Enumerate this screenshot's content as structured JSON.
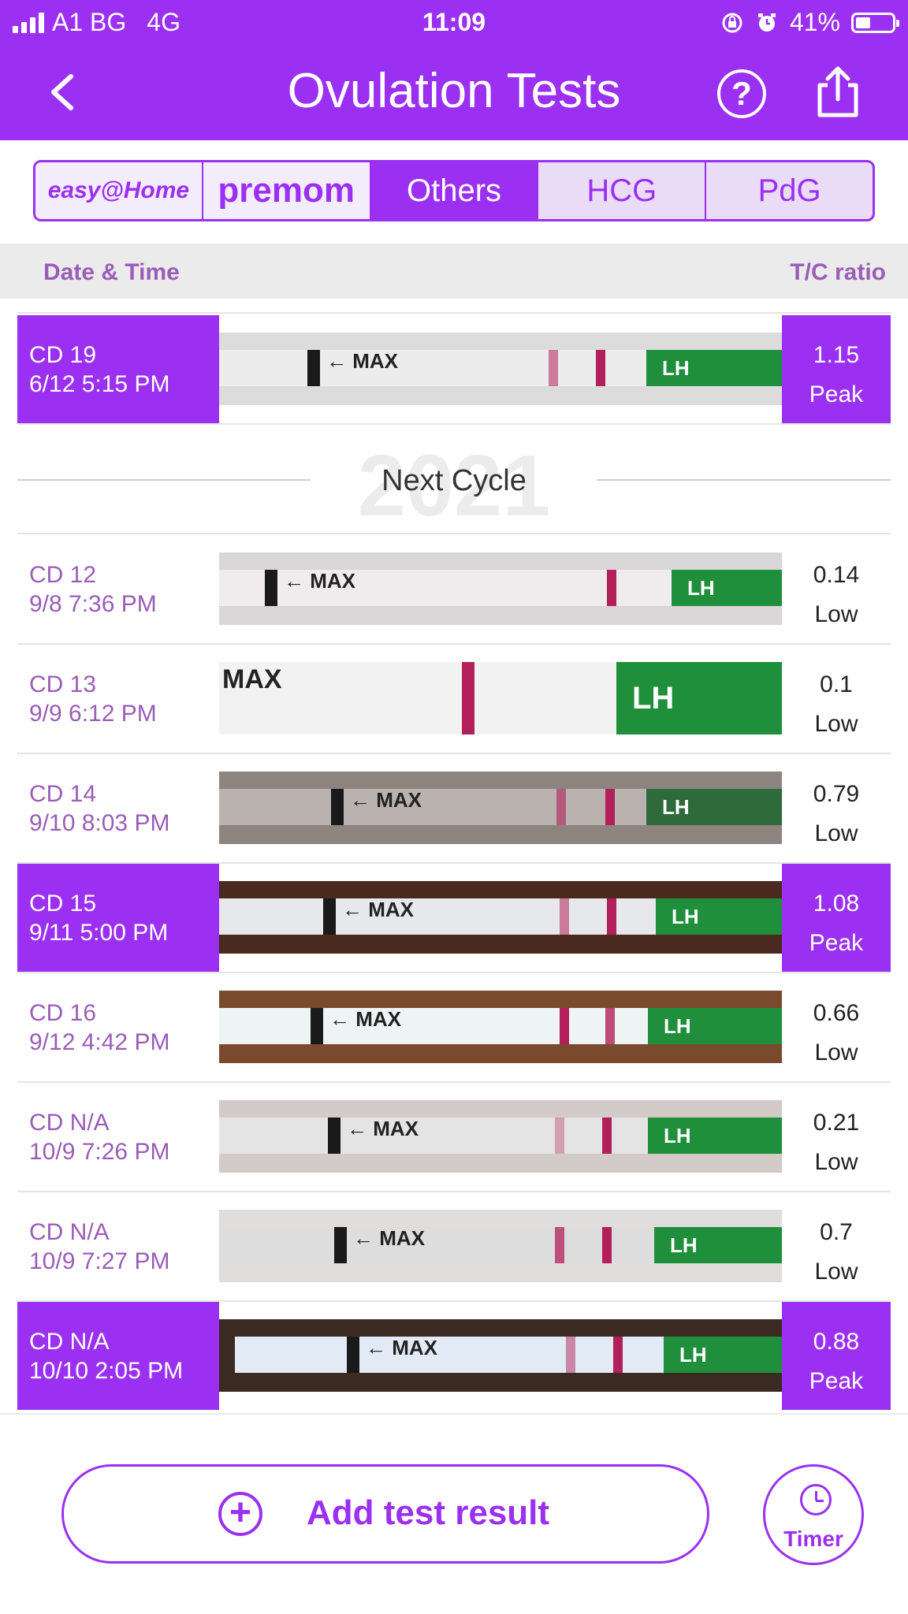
{
  "status_bar": {
    "carrier": "A1 BG",
    "network": "4G",
    "time": "11:09",
    "battery": "41%",
    "battery_level": 0.41
  },
  "header": {
    "title": "Ovulation Tests"
  },
  "tabs": {
    "easy_label": "easy@Home",
    "premom_label": "premom",
    "others": "Others",
    "hcg": "HCG",
    "pdg": "PdG",
    "active": "Others"
  },
  "columns": {
    "date_time": "Date & Time",
    "ratio": "T/C ratio"
  },
  "rows": [
    {
      "cd": "CD 19",
      "datetime": "6/12 5:15 PM",
      "ratio": "1.15",
      "level": "Peak",
      "peak": true
    },
    {
      "cd": "CD 12",
      "datetime": "9/8 7:36 PM",
      "ratio": "0.14",
      "level": "Low",
      "peak": false
    },
    {
      "cd": "CD 13",
      "datetime": "9/9 6:12 PM",
      "ratio": "0.1",
      "level": "Low",
      "peak": false
    },
    {
      "cd": "CD 14",
      "datetime": "9/10 8:03 PM",
      "ratio": "0.79",
      "level": "Low",
      "peak": false
    },
    {
      "cd": "CD 15",
      "datetime": "9/11 5:00 PM",
      "ratio": "1.08",
      "level": "Peak",
      "peak": true
    },
    {
      "cd": "CD 16",
      "datetime": "9/12 4:42 PM",
      "ratio": "0.66",
      "level": "Low",
      "peak": false
    },
    {
      "cd": "CD N/A",
      "datetime": "10/9 7:26 PM",
      "ratio": "0.21",
      "level": "Low",
      "peak": false
    },
    {
      "cd": "CD N/A",
      "datetime": "10/9 7:27 PM",
      "ratio": "0.7",
      "level": "Low",
      "peak": false
    },
    {
      "cd": "CD N/A",
      "datetime": "10/10 2:05 PM",
      "ratio": "0.88",
      "level": "Peak",
      "peak": true
    }
  ],
  "strip_text": {
    "max": "MAX",
    "lh": "LH"
  },
  "next_cycle": {
    "year": "2021",
    "label": "Next Cycle"
  },
  "actions": {
    "add": "Add test result",
    "timer": "Timer"
  },
  "colors": {
    "accent": "#9b30f2",
    "date_text": "#9a5db8",
    "test_line": "#b21f5a",
    "lh_band": "#1f8f3c"
  }
}
